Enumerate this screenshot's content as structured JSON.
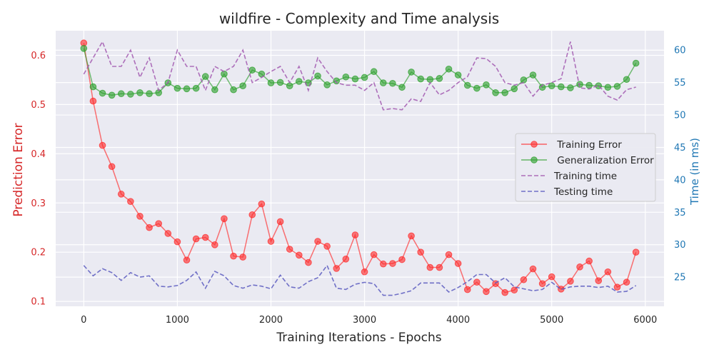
{
  "chart_data": {
    "type": "line",
    "title": "wildfire - Complexity and Time analysis",
    "xlabel": "Training Iterations - Epochs",
    "ylabel_left": "Prediction Error",
    "ylabel_right": "Time (in ms)",
    "xlim": [
      -300,
      6200
    ],
    "ylim_left": [
      0.09,
      0.65
    ],
    "ylim_right": [
      20.5,
      63
    ],
    "x_ticks": [
      0,
      1000,
      2000,
      3000,
      4000,
      5000,
      6000
    ],
    "y_ticks_left": [
      0.1,
      0.2,
      0.3,
      0.4,
      0.5,
      0.6
    ],
    "y_ticks_right": [
      25,
      30,
      35,
      40,
      45,
      50,
      55,
      60
    ],
    "grid": true,
    "legend_position": "center-right",
    "x": [
      0,
      100,
      200,
      300,
      400,
      500,
      600,
      700,
      800,
      900,
      1000,
      1100,
      1200,
      1300,
      1400,
      1500,
      1600,
      1700,
      1800,
      1900,
      2000,
      2100,
      2200,
      2300,
      2400,
      2500,
      2600,
      2700,
      2800,
      2900,
      3000,
      3100,
      3200,
      3300,
      3400,
      3500,
      3600,
      3700,
      3800,
      3900,
      4000,
      4100,
      4200,
      4300,
      4400,
      4500,
      4600,
      4700,
      4800,
      4900,
      5000,
      5100,
      5200,
      5300,
      5400,
      5500,
      5600,
      5700,
      5800,
      5900
    ],
    "series": [
      {
        "name": " Training Error",
        "axis": "left",
        "style": "line-marker",
        "color": "#ff2a2a",
        "values": [
          0.625,
          0.507,
          0.417,
          0.374,
          0.318,
          0.303,
          0.273,
          0.25,
          0.258,
          0.238,
          0.221,
          0.184,
          0.227,
          0.23,
          0.215,
          0.268,
          0.192,
          0.19,
          0.276,
          0.298,
          0.222,
          0.262,
          0.206,
          0.194,
          0.179,
          0.222,
          0.212,
          0.167,
          0.186,
          0.235,
          0.16,
          0.195,
          0.176,
          0.177,
          0.185,
          0.233,
          0.2,
          0.169,
          0.169,
          0.195,
          0.177,
          0.124,
          0.139,
          0.12,
          0.136,
          0.118,
          0.123,
          0.144,
          0.166,
          0.136,
          0.15,
          0.125,
          0.141,
          0.17,
          0.182,
          0.142,
          0.16,
          0.129,
          0.139,
          0.2
        ]
      },
      {
        "name": " Generalization Error",
        "axis": "left",
        "style": "line-marker",
        "color": "#2ca02c",
        "values": [
          0.614,
          0.536,
          0.523,
          0.519,
          0.522,
          0.521,
          0.524,
          0.522,
          0.524,
          0.544,
          0.533,
          0.532,
          0.533,
          0.557,
          0.53,
          0.562,
          0.53,
          0.538,
          0.57,
          0.562,
          0.544,
          0.545,
          0.538,
          0.547,
          0.544,
          0.558,
          0.54,
          0.548,
          0.556,
          0.552,
          0.555,
          0.567,
          0.544,
          0.543,
          0.535,
          0.566,
          0.552,
          0.551,
          0.553,
          0.572,
          0.56,
          0.539,
          0.533,
          0.54,
          0.524,
          0.524,
          0.532,
          0.55,
          0.56,
          0.535,
          0.538,
          0.536,
          0.534,
          0.541,
          0.539,
          0.538,
          0.535,
          0.537,
          0.551,
          0.584
        ]
      },
      {
        "name": "Training time",
        "axis": "right",
        "style": "dashed",
        "color": "#a259b0",
        "values": [
          56.3,
          58.8,
          61.3,
          57.5,
          57.5,
          60.0,
          55.8,
          58.8,
          53.8,
          55.0,
          60.0,
          57.5,
          57.5,
          53.8,
          57.5,
          56.7,
          57.5,
          60.0,
          55.0,
          55.8,
          56.7,
          57.5,
          55.0,
          57.5,
          53.8,
          58.8,
          56.7,
          55.0,
          54.6,
          54.6,
          53.8,
          55.0,
          50.8,
          51.0,
          50.8,
          52.5,
          52.1,
          55.0,
          53.1,
          53.8,
          55.0,
          55.9,
          58.8,
          58.7,
          57.5,
          55.0,
          54.6,
          55.0,
          52.9,
          54.6,
          55.0,
          55.6,
          61.3,
          54.2,
          54.0,
          54.6,
          52.9,
          52.3,
          53.9,
          54.3
        ]
      },
      {
        "name": "Testing time",
        "axis": "right",
        "style": "dashed",
        "color": "#5a5ac0",
        "values": [
          26.8,
          25.2,
          26.3,
          25.7,
          24.5,
          25.7,
          25.0,
          25.2,
          23.6,
          23.5,
          23.7,
          24.5,
          25.8,
          23.3,
          25.9,
          25.2,
          23.7,
          23.3,
          23.8,
          23.6,
          23.2,
          25.3,
          23.5,
          23.3,
          24.3,
          24.9,
          26.8,
          23.3,
          23.1,
          23.9,
          24.2,
          24.0,
          22.2,
          22.2,
          22.5,
          22.9,
          24.1,
          24.1,
          24.1,
          22.7,
          23.4,
          24.3,
          25.4,
          25.4,
          24.1,
          24.9,
          23.5,
          23.2,
          22.9,
          23.1,
          24.2,
          23.1,
          23.5,
          23.6,
          23.6,
          23.4,
          23.6,
          22.7,
          22.8,
          23.7
        ]
      }
    ]
  }
}
